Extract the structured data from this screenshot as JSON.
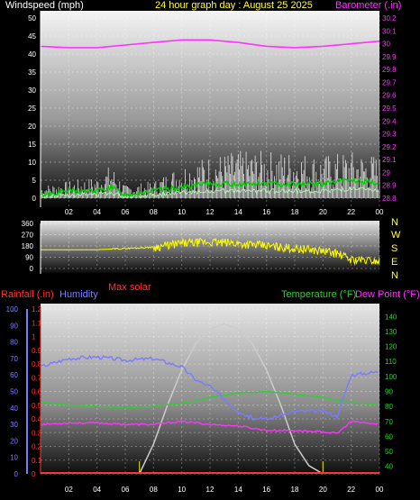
{
  "header": {
    "left": "Windspeed (mph)",
    "center": "24 hour graph day : August 25 2025",
    "right": "Barometer (.in)"
  },
  "colors": {
    "wind_axis": "#ffffff",
    "barometer": "#ff33ff",
    "title": "#ffff33",
    "rain": "#ff3333",
    "humidity": "#7b7bff",
    "solar": "#ff3333",
    "temperature": "#33cc33",
    "dewpoint": "#ff33ff",
    "gust": "#ffffff",
    "avg_wind": "#00cc00",
    "wind_dir": "#ffff00",
    "solar_curve": "#cccccc",
    "light_green": "#aaf0aa"
  },
  "panel3_labels": {
    "rainfall": "Rainfall (.in)",
    "humidity": "Humidity",
    "max_solar": "Max solar",
    "temperature": "Temperature (°F)",
    "dewpoint": "Dew Point (°F)"
  },
  "compass": [
    "N",
    "W",
    "S",
    "E",
    "N"
  ],
  "chart_data": [
    {
      "type": "line",
      "x_ticks": [
        "02",
        "04",
        "06",
        "08",
        "10",
        "12",
        "14",
        "16",
        "18",
        "20",
        "22",
        "00"
      ],
      "y_left_ticks": [
        "0",
        "5",
        "10",
        "15",
        "20",
        "25",
        "30",
        "35",
        "40",
        "45",
        "50"
      ],
      "y_left_lim": [
        0,
        50
      ],
      "y_right_ticks": [
        "28.8",
        "28.9",
        "29",
        "29.1",
        "29.2",
        "29.3",
        "29.4",
        "29.5",
        "29.6",
        "29.7",
        "29.8",
        "29.9",
        "30",
        "30.1",
        "30.2"
      ],
      "y_right_lim": [
        28.8,
        30.2
      ],
      "series": [
        {
          "name": "Barometer (.in)",
          "axis": "right",
          "x": [
            0,
            2,
            4,
            6,
            8,
            10,
            12,
            14,
            16,
            18,
            20,
            22,
            24
          ],
          "values": [
            29.98,
            29.97,
            29.97,
            29.99,
            30.01,
            30.03,
            30.03,
            30.01,
            29.98,
            29.97,
            29.98,
            30.0,
            30.02
          ]
        },
        {
          "axis": "left",
          "x": [
            0,
            2,
            4,
            5,
            6,
            8,
            10,
            12,
            14,
            16,
            18,
            20,
            22,
            24
          ],
          "values": [
            3,
            4,
            5,
            8,
            3,
            4,
            8,
            10,
            11,
            11,
            11,
            10,
            11,
            10
          ]
        },
        {
          "axis": "left",
          "x": [
            0,
            2,
            4,
            5,
            6,
            8,
            10,
            12,
            14,
            16,
            18,
            20,
            22,
            24
          ],
          "values": [
            1,
            2,
            2,
            3,
            1,
            2,
            3,
            4,
            4,
            4,
            4,
            4,
            5,
            4
          ]
        }
      ]
    },
    {
      "type": "scatter",
      "x_ticks": [
        "0",
        "90",
        "180",
        "270",
        "360"
      ],
      "y_ticks": [
        "360",
        "270",
        "180",
        "90",
        "0"
      ],
      "ylim": [
        0,
        360
      ],
      "series": [
        {
          "name": "Wind direction",
          "x": [
            0,
            2,
            4,
            6,
            8,
            10,
            12,
            14,
            16,
            18,
            20,
            21,
            22,
            24
          ],
          "values": [
            150,
            150,
            150,
            160,
            170,
            200,
            210,
            200,
            180,
            160,
            140,
            120,
            70,
            60
          ]
        }
      ]
    },
    {
      "type": "line",
      "x_ticks": [
        "02",
        "04",
        "06",
        "08",
        "10",
        "12",
        "14",
        "16",
        "18",
        "20",
        "22",
        "00"
      ],
      "y_left_humidity_ticks": [
        "0",
        "10",
        "20",
        "30",
        "40",
        "50",
        "60",
        "70",
        "80",
        "90",
        "100"
      ],
      "y_left_rain_ticks": [
        "0",
        "0.1",
        "0.2",
        "0.3",
        "0.4",
        "0.5",
        "0.6",
        "0.7",
        "0.8",
        "0.9",
        "1",
        "1.1",
        "1.2"
      ],
      "y_right_ticks": [
        "40",
        "50",
        "60",
        "70",
        "80",
        "90",
        "100",
        "110",
        "120",
        "130",
        "140"
      ],
      "y_right_lim": [
        35,
        145
      ],
      "vertical_markers_hours": [
        7,
        20
      ],
      "series": [
        {
          "name": "Humidity",
          "axis": "humidity",
          "x": [
            0,
            2,
            4,
            6,
            8,
            10,
            11,
            12,
            14,
            15,
            16,
            18,
            20,
            21,
            22,
            24
          ],
          "values": [
            65,
            70,
            71,
            69,
            70,
            65,
            57,
            53,
            38,
            34,
            33,
            38,
            38,
            35,
            60,
            62
          ]
        },
        {
          "name": "Temperature (°F)",
          "axis": "right",
          "x": [
            0,
            2,
            4,
            6,
            8,
            10,
            12,
            14,
            16,
            18,
            20,
            21,
            22,
            24
          ],
          "values": [
            83,
            81,
            80,
            79,
            80,
            82,
            86,
            89,
            90,
            88,
            86,
            84,
            83,
            81
          ]
        },
        {
          "name": "Dew Point (°F)",
          "axis": "right",
          "x": [
            0,
            2,
            4,
            6,
            8,
            10,
            12,
            14,
            16,
            18,
            20,
            21,
            22,
            24
          ],
          "values": [
            68,
            69,
            69,
            68,
            68,
            70,
            68,
            67,
            64,
            64,
            63,
            62,
            70,
            68
          ]
        },
        {
          "name": "Max solar",
          "axis": "humidity",
          "x": [
            7,
            8,
            9,
            10,
            11,
            12,
            13,
            14,
            15,
            16,
            17,
            18,
            19,
            20
          ],
          "values": [
            0,
            18,
            42,
            63,
            79,
            88,
            91,
            88,
            79,
            63,
            42,
            18,
            5,
            0
          ]
        },
        {
          "name": "Rainfall (.in)",
          "axis": "rain",
          "x": [
            0,
            24
          ],
          "values": [
            0,
            0
          ]
        }
      ]
    }
  ]
}
